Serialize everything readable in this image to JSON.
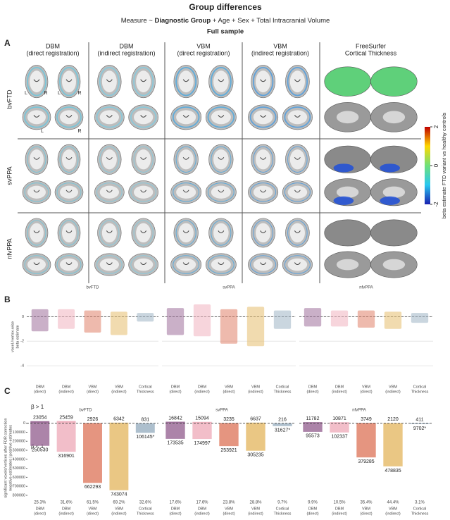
{
  "title": "Group differences",
  "subtitle": {
    "prefix": "Measure ~",
    "bold": "Diagnostic Group",
    "suffix": "+ Age + Sex + Total Intracranial Volume"
  },
  "sample": "Full sample",
  "panel_a": {
    "label": "A",
    "columns": [
      [
        "DBM",
        "(direct registration)"
      ],
      [
        "DBM",
        "(indirect registration)"
      ],
      [
        "VBM",
        "(direct registration)"
      ],
      [
        "VBM",
        "(indirect registration)"
      ],
      [
        "FreeSurfer",
        "Cortical Thickness"
      ]
    ],
    "rows": [
      "bvFTD",
      "svPPA",
      "nfvPPA"
    ],
    "hemisphere_labels": [
      "L",
      "R",
      "L",
      "R",
      "L",
      "R"
    ],
    "colorbar": {
      "label": "beta estimate FTD variant vs healthy controls",
      "ylim": [
        -2,
        2
      ],
      "yticks": [
        -2,
        0,
        2
      ]
    }
  },
  "panel_b": {
    "label": "B",
    "ylabel": [
      "voxel-/vertex-wise",
      "beta estimate"
    ],
    "groups": [
      "bvFTD",
      "svPPA",
      "nfvPPA"
    ],
    "measures": [
      [
        "DBM",
        "(direct)"
      ],
      [
        "DBM",
        "(indirect)"
      ],
      [
        "VBM",
        "(direct)"
      ],
      [
        "VBM",
        "(indirect)"
      ],
      [
        "Cortical",
        "Thickness"
      ]
    ],
    "colors": [
      "#9e6f9a",
      "#f0b3c0",
      "#e0826a",
      "#e6bd6e",
      "#9fb4c4"
    ],
    "ylim": [
      -5.2,
      1.8
    ],
    "yticks": [
      0,
      -2,
      -4
    ],
    "spread": [
      [
        [
          -1.2,
          0.6
        ],
        [
          -1.0,
          0.6
        ],
        [
          -1.3,
          0.5
        ],
        [
          -1.5,
          0.4
        ],
        [
          -0.4,
          0.3
        ]
      ],
      [
        [
          -1.5,
          0.7
        ],
        [
          -1.6,
          1.0
        ],
        [
          -2.2,
          0.6
        ],
        [
          -2.4,
          0.8
        ],
        [
          -1.0,
          0.5
        ]
      ],
      [
        [
          -0.8,
          0.7
        ],
        [
          -0.8,
          0.5
        ],
        [
          -0.9,
          0.5
        ],
        [
          -1.0,
          0.4
        ],
        [
          -0.5,
          0.3
        ]
      ]
    ]
  },
  "panel_c": {
    "type": "bar",
    "label": "C",
    "ylabel": [
      "significant voxels/vertices after FDR correction",
      "negative estimates | positive estimates"
    ],
    "above": "β > 1",
    "below": "β < 1",
    "groups": [
      "bvFTD",
      "svPPA",
      "nfvPPA"
    ],
    "measures": [
      [
        "DBM",
        "(direct)"
      ],
      [
        "DBM",
        "(indirect)"
      ],
      [
        "VBM",
        "(direct)"
      ],
      [
        "VBM",
        "(indirect)"
      ],
      [
        "Cortical",
        "Thickness"
      ]
    ],
    "colors": [
      "#9e6f9a",
      "#f0b3c0",
      "#e0826a",
      "#e6bd6e",
      "#9fb4c4"
    ],
    "ylim": [
      -800000,
      60000
    ],
    "yticks": [
      0,
      {
        "value": -100000,
        "label": "100000"
      },
      {
        "value": -200000,
        "label": "200000"
      },
      {
        "value": -300000,
        "label": "300000"
      },
      {
        "value": -400000,
        "label": "400000"
      },
      {
        "value": -500000,
        "label": "500000"
      },
      {
        "value": -600000,
        "label": "600000"
      },
      {
        "value": -700000,
        "label": "700000"
      },
      {
        "value": -800000,
        "label": "800000"
      }
    ],
    "positive": [
      [
        23054,
        25459,
        2926,
        6342,
        831
      ],
      [
        16842,
        15094,
        3235,
        6637,
        216
      ],
      [
        11782,
        10871,
        3749,
        2120,
        411
      ]
    ],
    "negative": [
      [
        -250530,
        -316901,
        -662293,
        -743074,
        -106145
      ],
      [
        -173535,
        -174997,
        -253921,
        -305235,
        -31627
      ],
      [
        -95573,
        -102337,
        -379285,
        -478835,
        -9702
      ]
    ],
    "negative_labels": [
      [
        "250530",
        "316901",
        "662293",
        "743074",
        "106145*"
      ],
      [
        "173535",
        "174997",
        "253921",
        "305235",
        "31627*"
      ],
      [
        "95573",
        "102337",
        "379285",
        "478835",
        "9702*"
      ]
    ],
    "percent_labels": [
      [
        "25.3%",
        "31.6%",
        "61.5%",
        "69.2%",
        "32.6%"
      ],
      [
        "17.6%",
        "17.6%",
        "23.8%",
        "28.8%",
        "9.7%"
      ],
      [
        "9.9%",
        "10.5%",
        "35.4%",
        "44.4%",
        "3.1%"
      ]
    ]
  }
}
